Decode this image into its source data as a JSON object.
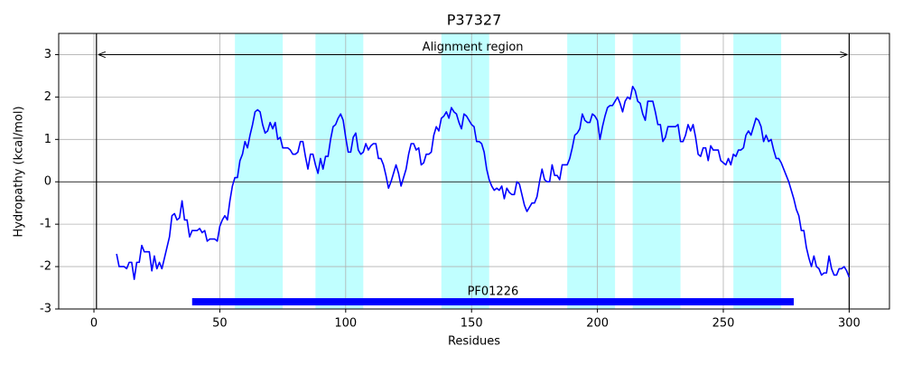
{
  "chart_data": {
    "type": "line",
    "title": "P37327",
    "x_label": "Residues",
    "y_label": "Hydropathy (kcal/mol)",
    "x": [
      9,
      10,
      11,
      12,
      13,
      14,
      15,
      16,
      17,
      18,
      19,
      20,
      21,
      22,
      23,
      24,
      25,
      26,
      27,
      28,
      29,
      30,
      31,
      32,
      33,
      34,
      35,
      36,
      37,
      38,
      39,
      40,
      41,
      42,
      43,
      44,
      45,
      46,
      47,
      48,
      49,
      50,
      51,
      52,
      53,
      54,
      55,
      56,
      57,
      58,
      59,
      60,
      61,
      62,
      63,
      64,
      65,
      66,
      67,
      68,
      69,
      70,
      71,
      72,
      73,
      74,
      75,
      76,
      77,
      78,
      79,
      80,
      81,
      82,
      83,
      84,
      85,
      86,
      87,
      88,
      89,
      90,
      91,
      92,
      93,
      94,
      95,
      96,
      97,
      98,
      99,
      100,
      101,
      102,
      103,
      104,
      105,
      106,
      107,
      108,
      109,
      110,
      111,
      112,
      113,
      114,
      115,
      116,
      117,
      118,
      119,
      120,
      121,
      122,
      123,
      124,
      125,
      126,
      127,
      128,
      129,
      130,
      131,
      132,
      133,
      134,
      135,
      136,
      137,
      138,
      139,
      140,
      141,
      142,
      143,
      144,
      145,
      146,
      147,
      148,
      149,
      150,
      151,
      152,
      153,
      154,
      155,
      156,
      157,
      158,
      159,
      160,
      161,
      162,
      163,
      164,
      165,
      166,
      167,
      168,
      169,
      170,
      171,
      172,
      173,
      174,
      175,
      176,
      177,
      178,
      179,
      180,
      181,
      182,
      183,
      184,
      185,
      186,
      187,
      188,
      189,
      190,
      191,
      192,
      193,
      194,
      195,
      196,
      197,
      198,
      199,
      200,
      201,
      202,
      203,
      204,
      205,
      206,
      207,
      208,
      209,
      210,
      211,
      212,
      213,
      214,
      215,
      216,
      217,
      218,
      219,
      220,
      221,
      222,
      223,
      224,
      225,
      226,
      227,
      228,
      229,
      230,
      231,
      232,
      233,
      234,
      235,
      236,
      237,
      238,
      239,
      240,
      241,
      242,
      243,
      244,
      245,
      246,
      247,
      248,
      249,
      250,
      251,
      252,
      253,
      254,
      255,
      256,
      257,
      258,
      259,
      260,
      261,
      262,
      263,
      264,
      265,
      266,
      267,
      268,
      269,
      270,
      271,
      272,
      273,
      274,
      275,
      276,
      277,
      278,
      279,
      280,
      281,
      282,
      283,
      284,
      285,
      286,
      287,
      288,
      289,
      290,
      291,
      292,
      293,
      294,
      295,
      296,
      297,
      298,
      299,
      300
    ],
    "series": [
      {
        "color": "#0000ff",
        "values": [
          -1.7,
          -2.0,
          -2.0,
          -2.0,
          -2.05,
          -1.9,
          -1.9,
          -2.3,
          -1.9,
          -1.9,
          -1.5,
          -1.65,
          -1.65,
          -1.65,
          -2.1,
          -1.75,
          -2.05,
          -1.9,
          -2.05,
          -1.8,
          -1.55,
          -1.3,
          -0.8,
          -0.75,
          -0.9,
          -0.85,
          -0.45,
          -0.9,
          -0.9,
          -1.3,
          -1.15,
          -1.15,
          -1.15,
          -1.1,
          -1.2,
          -1.15,
          -1.4,
          -1.35,
          -1.35,
          -1.35,
          -1.4,
          -1.05,
          -0.9,
          -0.8,
          -0.9,
          -0.45,
          -0.1,
          0.1,
          0.1,
          0.5,
          0.65,
          0.95,
          0.8,
          1.1,
          1.35,
          1.65,
          1.7,
          1.65,
          1.35,
          1.15,
          1.2,
          1.4,
          1.25,
          1.4,
          1.0,
          1.05,
          0.8,
          0.8,
          0.8,
          0.75,
          0.65,
          0.65,
          0.7,
          0.95,
          0.95,
          0.6,
          0.3,
          0.65,
          0.65,
          0.4,
          0.2,
          0.55,
          0.3,
          0.6,
          0.6,
          1.0,
          1.3,
          1.35,
          1.5,
          1.6,
          1.45,
          1.05,
          0.7,
          0.7,
          1.05,
          1.15,
          0.75,
          0.65,
          0.7,
          0.9,
          0.75,
          0.85,
          0.9,
          0.9,
          0.55,
          0.55,
          0.4,
          0.15,
          -0.15,
          0.0,
          0.2,
          0.4,
          0.2,
          -0.1,
          0.1,
          0.3,
          0.65,
          0.9,
          0.9,
          0.75,
          0.8,
          0.4,
          0.45,
          0.65,
          0.65,
          0.7,
          1.1,
          1.3,
          1.2,
          1.5,
          1.55,
          1.65,
          1.5,
          1.75,
          1.65,
          1.6,
          1.4,
          1.25,
          1.6,
          1.55,
          1.45,
          1.35,
          1.3,
          0.95,
          0.95,
          0.9,
          0.7,
          0.3,
          0.05,
          -0.1,
          -0.2,
          -0.15,
          -0.2,
          -0.1,
          -0.4,
          -0.15,
          -0.25,
          -0.3,
          -0.3,
          0.0,
          -0.05,
          -0.3,
          -0.55,
          -0.7,
          -0.6,
          -0.5,
          -0.5,
          -0.35,
          0.0,
          0.3,
          0.05,
          0.0,
          0.0,
          0.4,
          0.15,
          0.15,
          0.05,
          0.4,
          0.4,
          0.4,
          0.55,
          0.8,
          1.1,
          1.15,
          1.25,
          1.6,
          1.45,
          1.4,
          1.4,
          1.6,
          1.55,
          1.45,
          1.0,
          1.3,
          1.55,
          1.75,
          1.8,
          1.8,
          1.9,
          2.0,
          1.85,
          1.65,
          1.9,
          2.0,
          1.95,
          2.25,
          2.15,
          1.9,
          1.85,
          1.6,
          1.45,
          1.9,
          1.9,
          1.9,
          1.65,
          1.35,
          1.35,
          0.95,
          1.05,
          1.3,
          1.3,
          1.3,
          1.3,
          1.35,
          0.95,
          0.95,
          1.1,
          1.35,
          1.2,
          1.35,
          1.05,
          0.65,
          0.6,
          0.8,
          0.8,
          0.5,
          0.85,
          0.75,
          0.75,
          0.75,
          0.5,
          0.45,
          0.4,
          0.55,
          0.4,
          0.65,
          0.6,
          0.75,
          0.75,
          0.8,
          1.1,
          1.2,
          1.1,
          1.3,
          1.5,
          1.45,
          1.3,
          0.95,
          1.1,
          0.95,
          1.0,
          0.75,
          0.55,
          0.55,
          0.45,
          0.3,
          0.15,
          0.0,
          -0.2,
          -0.4,
          -0.65,
          -0.8,
          -1.15,
          -1.15,
          -1.55,
          -1.8,
          -2.0,
          -1.75,
          -2.0,
          -2.05,
          -2.2,
          -2.15,
          -2.15,
          -1.75,
          -2.05,
          -2.2,
          -2.2,
          -2.05,
          -2.05,
          -2.0,
          -2.1,
          -2.25
        ]
      }
    ],
    "xlim": [
      -14,
      316
    ],
    "ylim": [
      -3,
      3.5
    ],
    "xticks": [
      0,
      50,
      100,
      150,
      200,
      250,
      300
    ],
    "yticks": [
      -3,
      -2,
      -1,
      0,
      1,
      2,
      3
    ],
    "grid": true,
    "zero_line": 0,
    "highlight_color": "#c0ffff",
    "highlight_regions": [
      [
        56,
        75
      ],
      [
        88,
        107
      ],
      [
        138,
        157
      ],
      [
        188,
        207
      ],
      [
        214,
        233
      ],
      [
        254,
        273
      ]
    ],
    "alignment_region": {
      "label": "Alignment region",
      "start": 1,
      "end": 300,
      "y": 3
    },
    "domain": {
      "label": "PF01226",
      "start": 39,
      "end": 278,
      "y": -2.83,
      "color": "#0000ff"
    }
  }
}
